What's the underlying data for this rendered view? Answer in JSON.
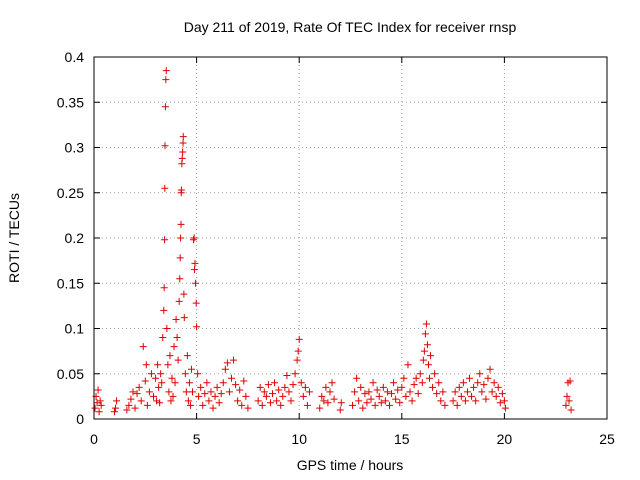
{
  "chart_data": {
    "type": "scatter",
    "title": "Day 211 of 2019, Rate Of TEC Index for receiver rnsp",
    "xlabel": "GPS time / hours",
    "ylabel": "ROTI / TECUs",
    "xlim": [
      0,
      25
    ],
    "ylim": [
      0,
      0.4
    ],
    "xticks": [
      0,
      5,
      10,
      15,
      20,
      25
    ],
    "yticks": [
      0,
      0.05,
      0.1,
      0.15,
      0.2,
      0.25,
      0.3,
      0.35,
      0.4
    ],
    "xtick_labels": [
      "0",
      "5",
      "10",
      "15",
      "20",
      "25"
    ],
    "ytick_labels": [
      "0",
      "0.05",
      "0.1",
      "0.15",
      "0.2",
      "0.25",
      "0.3",
      "0.35",
      "0.4"
    ],
    "grid": true,
    "marker": "+",
    "color": "#e00000",
    "series": [
      {
        "name": "ROTI",
        "points": [
          [
            0.05,
            0.012
          ],
          [
            0.1,
            0.025
          ],
          [
            0.15,
            0.018
          ],
          [
            0.2,
            0.032
          ],
          [
            0.25,
            0.008
          ],
          [
            0.3,
            0.02
          ],
          [
            0.35,
            0.015
          ],
          [
            1.0,
            0.008
          ],
          [
            1.05,
            0.012
          ],
          [
            1.1,
            0.02
          ],
          [
            1.6,
            0.01
          ],
          [
            1.7,
            0.015
          ],
          [
            1.8,
            0.022
          ],
          [
            1.9,
            0.03
          ],
          [
            2.0,
            0.012
          ],
          [
            2.1,
            0.028
          ],
          [
            2.2,
            0.035
          ],
          [
            2.3,
            0.02
          ],
          [
            2.4,
            0.08
          ],
          [
            2.5,
            0.042
          ],
          [
            2.55,
            0.06
          ],
          [
            2.6,
            0.015
          ],
          [
            2.7,
            0.03
          ],
          [
            2.8,
            0.05
          ],
          [
            2.9,
            0.025
          ],
          [
            3.0,
            0.045
          ],
          [
            3.05,
            0.02
          ],
          [
            3.1,
            0.06
          ],
          [
            3.15,
            0.035
          ],
          [
            3.2,
            0.018
          ],
          [
            3.25,
            0.05
          ],
          [
            3.3,
            0.04
          ],
          [
            3.35,
            0.09
          ],
          [
            3.4,
            0.12
          ],
          [
            3.42,
            0.145
          ],
          [
            3.44,
            0.198
          ],
          [
            3.45,
            0.255
          ],
          [
            3.46,
            0.302
          ],
          [
            3.48,
            0.345
          ],
          [
            3.5,
            0.375
          ],
          [
            3.52,
            0.385
          ],
          [
            3.55,
            0.1
          ],
          [
            3.6,
            0.06
          ],
          [
            3.65,
            0.03
          ],
          [
            3.7,
            0.07
          ],
          [
            3.75,
            0.02
          ],
          [
            3.8,
            0.045
          ],
          [
            3.85,
            0.025
          ],
          [
            3.9,
            0.08
          ],
          [
            3.95,
            0.04
          ],
          [
            4.0,
            0.11
          ],
          [
            4.05,
            0.09
          ],
          [
            4.1,
            0.065
          ],
          [
            4.15,
            0.13
          ],
          [
            4.18,
            0.155
          ],
          [
            4.2,
            0.178
          ],
          [
            4.22,
            0.2
          ],
          [
            4.24,
            0.215
          ],
          [
            4.25,
            0.25
          ],
          [
            4.26,
            0.253
          ],
          [
            4.28,
            0.282
          ],
          [
            4.3,
            0.288
          ],
          [
            4.32,
            0.295
          ],
          [
            4.34,
            0.305
          ],
          [
            4.35,
            0.312
          ],
          [
            4.38,
            0.138
          ],
          [
            4.4,
            0.112
          ],
          [
            4.45,
            0.05
          ],
          [
            4.5,
            0.03
          ],
          [
            4.55,
            0.07
          ],
          [
            4.6,
            0.02
          ],
          [
            4.65,
            0.04
          ],
          [
            4.7,
            0.015
          ],
          [
            4.75,
            0.055
          ],
          [
            4.8,
            0.03
          ],
          [
            4.85,
            0.198
          ],
          [
            4.88,
            0.2
          ],
          [
            4.9,
            0.165
          ],
          [
            4.92,
            0.172
          ],
          [
            4.95,
            0.15
          ],
          [
            4.98,
            0.128
          ],
          [
            5.0,
            0.102
          ],
          [
            5.05,
            0.05
          ],
          [
            5.1,
            0.025
          ],
          [
            5.2,
            0.035
          ],
          [
            5.3,
            0.015
          ],
          [
            5.4,
            0.028
          ],
          [
            5.5,
            0.04
          ],
          [
            5.6,
            0.02
          ],
          [
            5.7,
            0.03
          ],
          [
            5.8,
            0.012
          ],
          [
            5.9,
            0.025
          ],
          [
            6.0,
            0.035
          ],
          [
            6.1,
            0.018
          ],
          [
            6.2,
            0.028
          ],
          [
            6.3,
            0.04
          ],
          [
            6.4,
            0.055
          ],
          [
            6.5,
            0.062
          ],
          [
            6.6,
            0.03
          ],
          [
            6.7,
            0.045
          ],
          [
            6.8,
            0.065
          ],
          [
            6.9,
            0.038
          ],
          [
            7.0,
            0.02
          ],
          [
            7.1,
            0.032
          ],
          [
            7.2,
            0.015
          ],
          [
            7.3,
            0.042
          ],
          [
            7.4,
            0.025
          ],
          [
            7.5,
            0.012
          ],
          [
            8.0,
            0.02
          ],
          [
            8.1,
            0.035
          ],
          [
            8.2,
            0.015
          ],
          [
            8.3,
            0.03
          ],
          [
            8.4,
            0.025
          ],
          [
            8.5,
            0.038
          ],
          [
            8.6,
            0.018
          ],
          [
            8.7,
            0.028
          ],
          [
            8.8,
            0.04
          ],
          [
            8.9,
            0.02
          ],
          [
            9.0,
            0.032
          ],
          [
            9.1,
            0.015
          ],
          [
            9.2,
            0.025
          ],
          [
            9.3,
            0.035
          ],
          [
            9.4,
            0.048
          ],
          [
            9.5,
            0.03
          ],
          [
            9.6,
            0.02
          ],
          [
            9.7,
            0.038
          ],
          [
            9.8,
            0.05
          ],
          [
            9.9,
            0.065
          ],
          [
            9.95,
            0.075
          ],
          [
            10.0,
            0.088
          ],
          [
            10.1,
            0.04
          ],
          [
            10.2,
            0.025
          ],
          [
            10.3,
            0.035
          ],
          [
            10.4,
            0.015
          ],
          [
            10.5,
            0.03
          ],
          [
            11.0,
            0.012
          ],
          [
            11.1,
            0.025
          ],
          [
            11.2,
            0.02
          ],
          [
            11.3,
            0.035
          ],
          [
            11.4,
            0.018
          ],
          [
            11.5,
            0.03
          ],
          [
            11.6,
            0.04
          ],
          [
            11.7,
            0.022
          ],
          [
            12.0,
            0.01
          ],
          [
            12.05,
            0.018
          ],
          [
            12.6,
            0.015
          ],
          [
            12.7,
            0.03
          ],
          [
            12.8,
            0.045
          ],
          [
            12.9,
            0.02
          ],
          [
            13.0,
            0.035
          ],
          [
            13.1,
            0.012
          ],
          [
            13.2,
            0.028
          ],
          [
            13.3,
            0.018
          ],
          [
            13.4,
            0.03
          ],
          [
            13.5,
            0.022
          ],
          [
            13.6,
            0.04
          ],
          [
            13.7,
            0.015
          ],
          [
            13.8,
            0.032
          ],
          [
            13.9,
            0.025
          ],
          [
            14.0,
            0.018
          ],
          [
            14.1,
            0.035
          ],
          [
            14.2,
            0.02
          ],
          [
            14.3,
            0.03
          ],
          [
            14.4,
            0.015
          ],
          [
            14.5,
            0.028
          ],
          [
            14.6,
            0.04
          ],
          [
            14.7,
            0.022
          ],
          [
            14.8,
            0.032
          ],
          [
            14.9,
            0.018
          ],
          [
            15.0,
            0.035
          ],
          [
            15.1,
            0.045
          ],
          [
            15.2,
            0.025
          ],
          [
            15.3,
            0.06
          ],
          [
            15.4,
            0.03
          ],
          [
            15.5,
            0.02
          ],
          [
            15.6,
            0.038
          ],
          [
            15.7,
            0.045
          ],
          [
            15.8,
            0.028
          ],
          [
            15.9,
            0.05
          ],
          [
            16.0,
            0.04
          ],
          [
            16.05,
            0.065
          ],
          [
            16.1,
            0.075
          ],
          [
            16.15,
            0.094
          ],
          [
            16.2,
            0.105
          ],
          [
            16.25,
            0.082
          ],
          [
            16.3,
            0.06
          ],
          [
            16.35,
            0.045
          ],
          [
            16.4,
            0.07
          ],
          [
            16.5,
            0.035
          ],
          [
            16.6,
            0.05
          ],
          [
            16.7,
            0.028
          ],
          [
            16.8,
            0.04
          ],
          [
            16.9,
            0.02
          ],
          [
            17.0,
            0.03
          ],
          [
            17.1,
            0.015
          ],
          [
            17.5,
            0.02
          ],
          [
            17.6,
            0.03
          ],
          [
            17.7,
            0.015
          ],
          [
            17.8,
            0.035
          ],
          [
            17.9,
            0.025
          ],
          [
            18.0,
            0.04
          ],
          [
            18.1,
            0.02
          ],
          [
            18.2,
            0.03
          ],
          [
            18.3,
            0.045
          ],
          [
            18.4,
            0.025
          ],
          [
            18.5,
            0.035
          ],
          [
            18.6,
            0.02
          ],
          [
            18.7,
            0.04
          ],
          [
            18.8,
            0.05
          ],
          [
            18.9,
            0.03
          ],
          [
            19.0,
            0.038
          ],
          [
            19.1,
            0.022
          ],
          [
            19.2,
            0.045
          ],
          [
            19.3,
            0.055
          ],
          [
            19.4,
            0.03
          ],
          [
            19.5,
            0.04
          ],
          [
            19.6,
            0.025
          ],
          [
            19.7,
            0.035
          ],
          [
            19.8,
            0.018
          ],
          [
            19.9,
            0.028
          ],
          [
            20.0,
            0.02
          ],
          [
            20.05,
            0.012
          ],
          [
            23.0,
            0.015
          ],
          [
            23.05,
            0.025
          ],
          [
            23.1,
            0.04
          ],
          [
            23.15,
            0.02
          ],
          [
            23.2,
            0.042
          ],
          [
            23.25,
            0.01
          ]
        ]
      }
    ]
  }
}
